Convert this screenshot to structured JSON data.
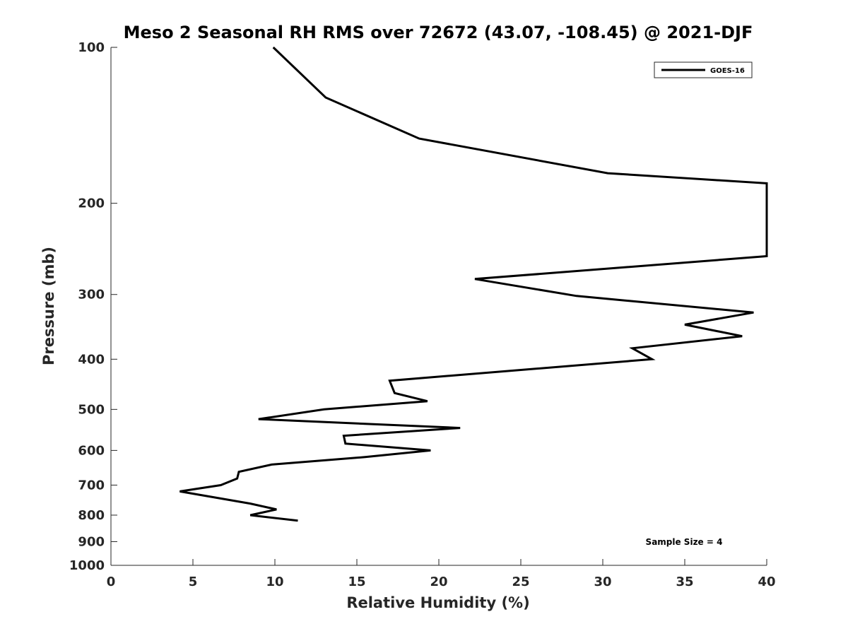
{
  "chart_data": {
    "type": "line",
    "title": "Meso 2 Seasonal RH RMS over 72672 (43.07, -108.45) @ 2021-DJF",
    "xlabel": "Relative Humidity (%)",
    "ylabel": "Pressure (mb)",
    "xlim": [
      0,
      40
    ],
    "ylim": [
      100,
      1000
    ],
    "y_scale": "log",
    "y_reversed": true,
    "x_ticks": [
      0,
      5,
      10,
      15,
      20,
      25,
      30,
      35,
      40
    ],
    "y_ticks": [
      100,
      200,
      300,
      400,
      500,
      600,
      700,
      800,
      900,
      1000
    ],
    "grid": false,
    "legend_position": "top-right",
    "series": [
      {
        "name": "GOES-16",
        "color": "#000000",
        "points": [
          [
            9.9,
            100
          ],
          [
            13.1,
            125
          ],
          [
            18.8,
            150
          ],
          [
            30.3,
            175
          ],
          [
            40.0,
            183
          ],
          [
            40.0,
            253
          ],
          [
            22.2,
            280
          ],
          [
            28.4,
            302
          ],
          [
            39.2,
            325
          ],
          [
            35.0,
            343
          ],
          [
            38.5,
            361
          ],
          [
            31.8,
            381
          ],
          [
            33.0,
            400
          ],
          [
            17.0,
            440
          ],
          [
            17.3,
            465
          ],
          [
            19.3,
            482
          ],
          [
            13.0,
            500
          ],
          [
            9.0,
            522
          ],
          [
            21.3,
            543
          ],
          [
            14.2,
            562
          ],
          [
            14.3,
            582
          ],
          [
            19.5,
            600
          ],
          [
            15.5,
            618
          ],
          [
            9.8,
            639
          ],
          [
            7.8,
            660
          ],
          [
            7.7,
            680
          ],
          [
            6.7,
            700
          ],
          [
            4.2,
            720
          ],
          [
            8.5,
            760
          ],
          [
            10.1,
            780
          ],
          [
            8.5,
            800
          ],
          [
            11.4,
            820
          ]
        ]
      }
    ],
    "annotation": "Sample Size = 4"
  }
}
